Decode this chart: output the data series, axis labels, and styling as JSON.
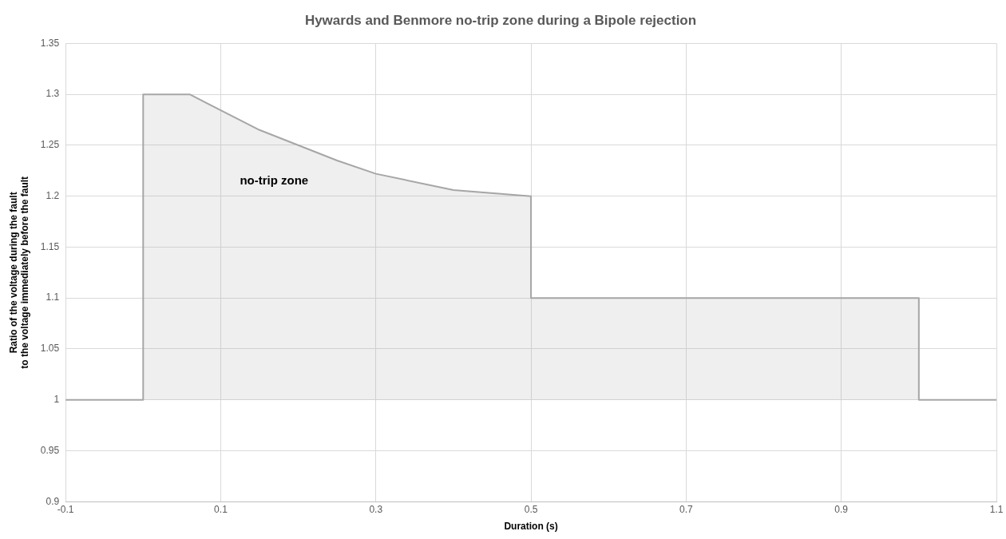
{
  "chart_data": {
    "type": "area",
    "title": "Hywards and Benmore no-trip zone during a Bipole rejection",
    "xlabel": "Duration (s)",
    "ylabel": "Ratio of the voltage during the fault to the voltage immediately before the fault",
    "series": [
      {
        "color": "#a6a6a6",
        "x": [
          -0.1,
          0,
          0,
          0.06,
          0.15,
          0.25,
          0.3,
          0.4,
          0.5,
          0.5,
          1.0,
          1.0,
          1.1
        ],
        "values": [
          1,
          1,
          1.3,
          1.3,
          1.265,
          1.235,
          1.222,
          1.206,
          1.2,
          1.1,
          1.1,
          1,
          1
        ]
      }
    ],
    "xlim": [
      -0.1,
      1.1
    ],
    "xticks": [
      -0.1,
      0.1,
      0.3,
      0.5,
      0.7,
      0.9,
      1.1
    ],
    "ylim": [
      0.9,
      1.35
    ],
    "yticks": [
      0.9,
      0.95,
      1,
      1.05,
      1.1,
      1.15,
      1.2,
      1.25,
      1.3,
      1.35
    ],
    "annotations": [
      "no-trip zone"
    ],
    "grid": true,
    "legend": false,
    "marker": "none",
    "line_style": "solid"
  }
}
